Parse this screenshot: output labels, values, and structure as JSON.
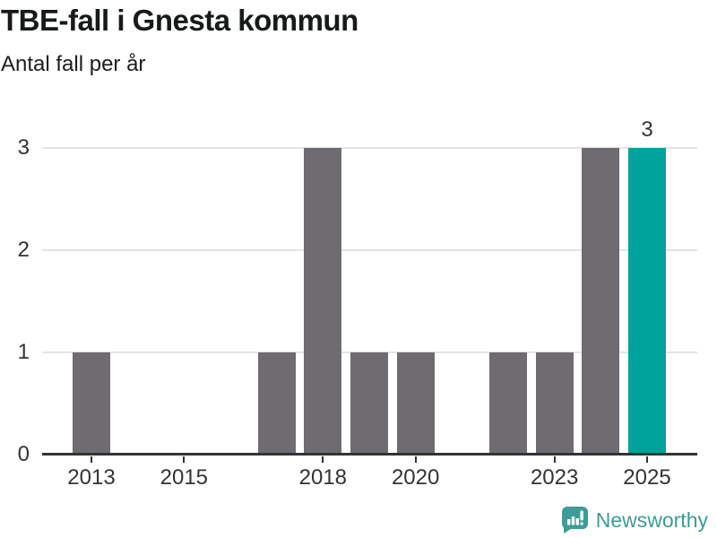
{
  "header": {
    "title": "TBE-fall i Gnesta kommun",
    "subtitle": "Antal fall per år"
  },
  "chart_data": {
    "type": "bar",
    "title": "TBE-fall i Gnesta kommun",
    "subtitle": "Antal fall per år",
    "xlabel": "",
    "ylabel": "Antal fall per år",
    "categories": [
      "2013",
      "2014",
      "2015",
      "2016",
      "2017",
      "2018",
      "2019",
      "2020",
      "2021",
      "2022",
      "2023",
      "2024",
      "2025"
    ],
    "values": [
      1,
      0,
      0,
      0,
      1,
      3,
      1,
      1,
      0,
      1,
      1,
      3,
      3
    ],
    "highlight_category": "2025",
    "bar_label": {
      "category": "2025",
      "text": "3"
    },
    "ylim": [
      0,
      3
    ],
    "y_ticks": [
      0,
      1,
      2,
      3
    ],
    "x_tick_labels": [
      "2013",
      "2015",
      "2018",
      "2020",
      "2023",
      "2025"
    ],
    "grid": "horizontal",
    "legend": "none",
    "colors": {
      "bar": "#6f6c71",
      "highlight": "#00a39b",
      "grid": "#e4e4e4",
      "axis": "#333333"
    }
  },
  "footer": {
    "brand": "Newsworthy",
    "brand_color": "#3e9c96",
    "logo_icon": "newsworthy-speech-bubble-bar-chart-icon"
  }
}
